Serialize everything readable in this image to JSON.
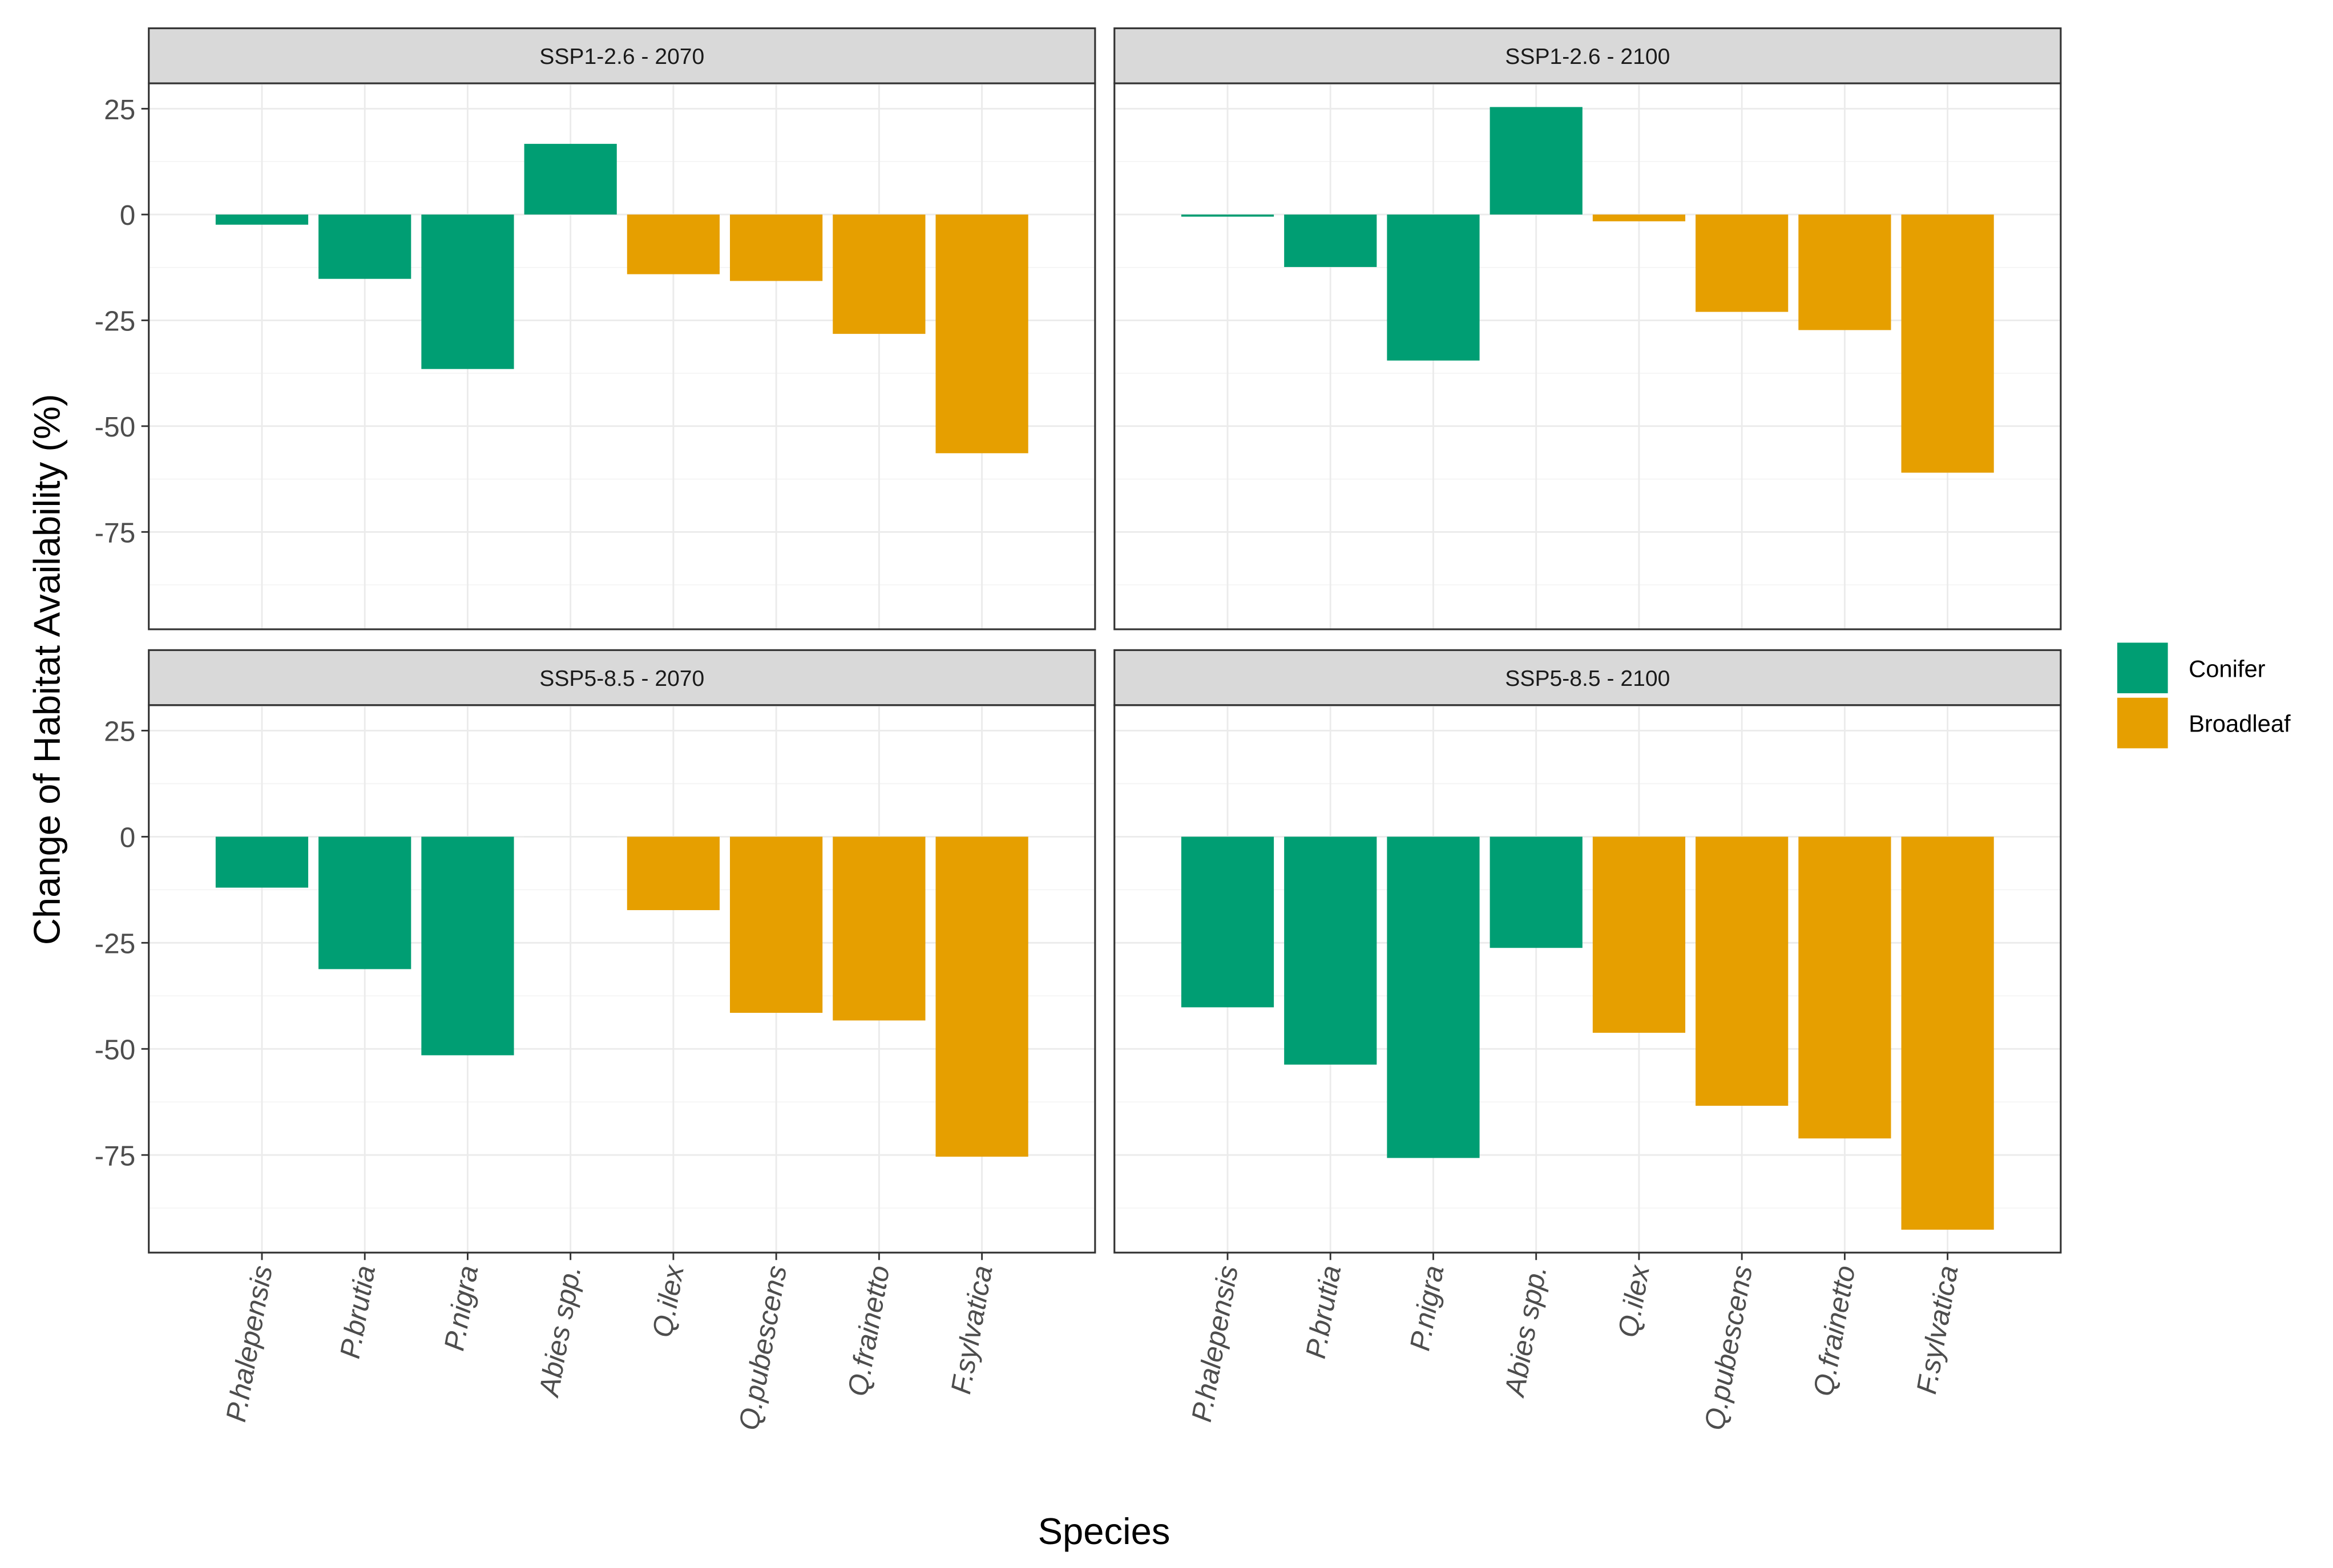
{
  "chart_data": {
    "type": "bar",
    "title": "",
    "xlabel": "Species",
    "ylabel": "Change of Habitat Availability (%)",
    "ylim": [
      -98,
      31
    ],
    "yticks": [
      25,
      0,
      -25,
      -50,
      -75
    ],
    "ytick_labels": [
      "25",
      "0",
      "-25",
      "-50",
      "-75"
    ],
    "grid": true,
    "categories": [
      "P.halepensis",
      "P.brutia",
      "P.nigra",
      "Abies spp.",
      "Q.ilex",
      "Q.pubescens",
      "Q.frainetto",
      "F.sylvatica"
    ],
    "category_group": [
      "Conifer",
      "Conifer",
      "Conifer",
      "Conifer",
      "Broadleaf",
      "Broadleaf",
      "Broadleaf",
      "Broadleaf"
    ],
    "legend": {
      "placement": "right",
      "entries": [
        {
          "name": "Conifer",
          "color": "#009E73"
        },
        {
          "name": "Broadleaf",
          "color": "#E69F00"
        }
      ]
    },
    "panels": [
      {
        "title": "SSP1-2.6 - 2070",
        "values": [
          -2.4,
          -15.2,
          -36.5,
          16.7,
          -14.1,
          -15.7,
          -28.2,
          -56.4
        ]
      },
      {
        "title": "SSP1-2.6 - 2100",
        "values": [
          -0.5,
          -12.4,
          -34.5,
          25.4,
          -1.6,
          -23.0,
          -27.3,
          -61.0
        ]
      },
      {
        "title": "SSP5-8.5 - 2070",
        "values": [
          -12.0,
          -31.2,
          -51.5,
          0,
          -17.3,
          -41.5,
          -43.3,
          -75.4
        ]
      },
      {
        "title": "SSP5-8.5 - 2100",
        "values": [
          -40.2,
          -53.7,
          -75.7,
          -26.2,
          -46.2,
          -63.4,
          -71.1,
          -92.6
        ]
      }
    ]
  }
}
